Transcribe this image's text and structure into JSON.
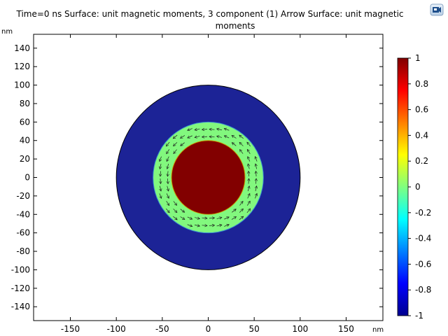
{
  "title": {
    "line1": "Time=0 ns  Surface: unit magnetic moments, 3 component (1)  Arrow Surface: unit magnetic",
    "line2": "moments"
  },
  "toolbar": {
    "camera_icon": "camera-icon"
  },
  "chart_data": {
    "type": "heatmap",
    "description_of_geometry": "concentric disks (outer shell, middle ring, inner core)",
    "x_unit": "nm",
    "y_unit": "nm",
    "xlim": [
      -190,
      190
    ],
    "ylim": [
      -155,
      155
    ],
    "x_ticks": [
      -150,
      -100,
      -50,
      0,
      50,
      100,
      150
    ],
    "y_ticks": [
      140,
      120,
      100,
      80,
      60,
      40,
      20,
      0,
      -20,
      -40,
      -60,
      -80,
      -100,
      -120,
      -140
    ],
    "regions": [
      {
        "name": "outer shell",
        "radius": 100,
        "value": -1
      },
      {
        "name": "middle ring",
        "radius": 60,
        "value": 0
      },
      {
        "name": "inner core",
        "radius": 40,
        "value": 1
      }
    ],
    "arrows_in_ring": "circulating in-plane magnetization",
    "colorbar": {
      "min": -1,
      "max": 1,
      "ticks": [
        1,
        0.8,
        0.6,
        0.4,
        0.2,
        0,
        -0.2,
        -0.4,
        -0.6,
        -0.8,
        -1
      ],
      "colormap": "jet"
    },
    "colors": {
      "outer_shell": "#1c2396",
      "middle_ring": "#82f87e",
      "inner_core": "#820000"
    },
    "grid": false
  }
}
